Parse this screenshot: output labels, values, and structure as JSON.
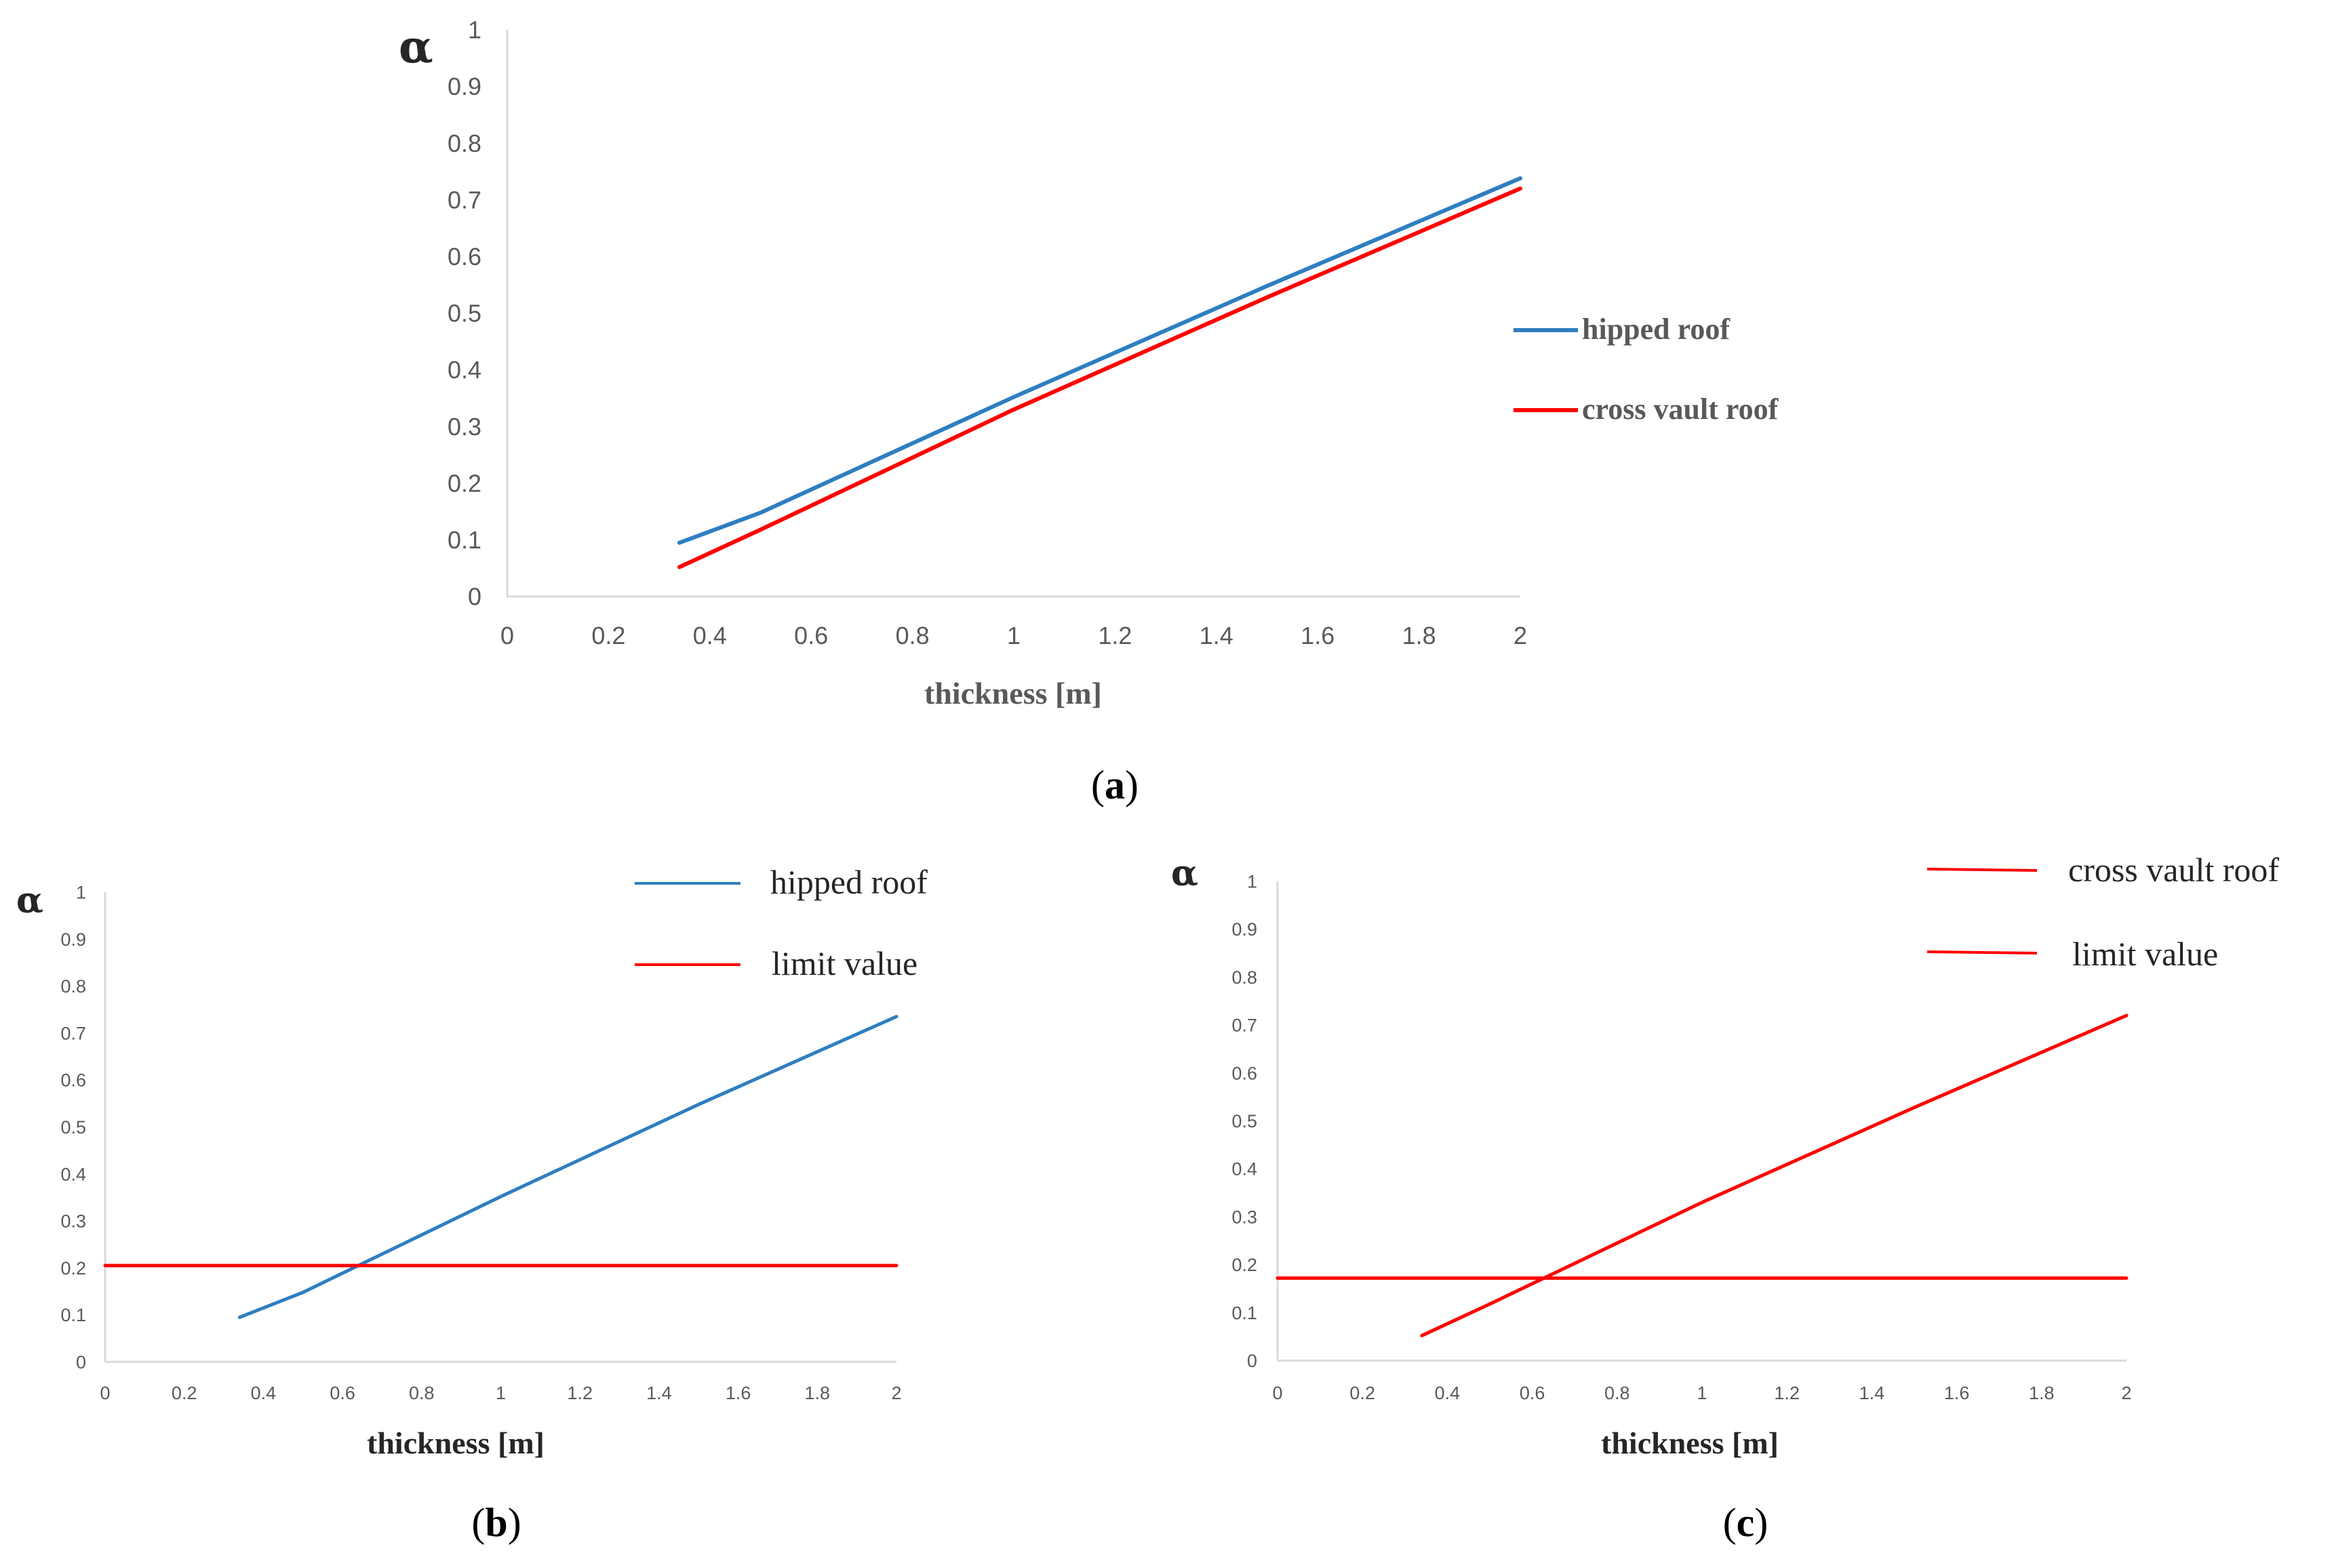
{
  "figure_captions": {
    "a": {
      "open": "(",
      "letter": "a",
      "close": ")"
    },
    "b": {
      "open": "(",
      "letter": "b",
      "close": ")"
    },
    "c": {
      "open": "(",
      "letter": "c",
      "close": ")"
    }
  },
  "colors": {
    "blue": "#2E7EC1",
    "red": "#FF0000",
    "axis": "#D9D9D9"
  },
  "chart_data": [
    {
      "id": "a",
      "type": "line",
      "ylabel": "α",
      "xlabel": "thickness [m]",
      "xlim": [
        0,
        2
      ],
      "ylim": [
        0,
        1
      ],
      "xticks": [
        "0",
        "0.2",
        "0.4",
        "0.6",
        "0.8",
        "1",
        "1.2",
        "1.4",
        "1.6",
        "1.8",
        "2"
      ],
      "yticks": [
        "0",
        "0.1",
        "0.2",
        "0.3",
        "0.4",
        "0.5",
        "0.6",
        "0.7",
        "0.8",
        "0.9",
        "1"
      ],
      "series": [
        {
          "name": "hipped roof",
          "color": "#2E7EC1",
          "x": [
            0.34,
            0.5,
            1.0,
            1.5,
            2.0
          ],
          "y": [
            0.095,
            0.148,
            0.352,
            0.548,
            0.738
          ]
        },
        {
          "name": "cross vault roof",
          "color": "#FF0000",
          "x": [
            0.34,
            0.5,
            1.0,
            1.5,
            2.0
          ],
          "y": [
            0.052,
            0.118,
            0.33,
            0.528,
            0.72
          ]
        }
      ]
    },
    {
      "id": "b",
      "type": "line",
      "ylabel": "α",
      "xlabel": "thickness [m]",
      "xlim": [
        0,
        2
      ],
      "ylim": [
        0,
        1
      ],
      "xticks": [
        "0",
        "0.2",
        "0.4",
        "0.6",
        "0.8",
        "1",
        "1.2",
        "1.4",
        "1.6",
        "1.8",
        "2"
      ],
      "yticks": [
        "0",
        "0.1",
        "0.2",
        "0.3",
        "0.4",
        "0.5",
        "0.6",
        "0.7",
        "0.8",
        "0.9",
        "1"
      ],
      "series": [
        {
          "name": "hipped roof",
          "color": "#2E7EC1",
          "x": [
            0.34,
            0.5,
            1.0,
            1.5,
            2.0
          ],
          "y": [
            0.095,
            0.148,
            0.352,
            0.548,
            0.735
          ]
        },
        {
          "name": "limit value",
          "color": "#FF0000",
          "x": [
            0,
            2
          ],
          "y": [
            0.205,
            0.205
          ]
        }
      ]
    },
    {
      "id": "c",
      "type": "line",
      "ylabel": "α",
      "xlabel": "thickness [m]",
      "xlim": [
        0,
        2
      ],
      "ylim": [
        0,
        1
      ],
      "xticks": [
        "0",
        "0.2",
        "0.4",
        "0.6",
        "0.8",
        "1",
        "1.2",
        "1.4",
        "1.6",
        "1.8",
        "2"
      ],
      "yticks": [
        "0",
        "0.1",
        "0.2",
        "0.3",
        "0.4",
        "0.5",
        "0.6",
        "0.7",
        "0.8",
        "0.9",
        "1"
      ],
      "series": [
        {
          "name": "cross vault roof",
          "color": "#FF0000",
          "x": [
            0.34,
            0.5,
            1.0,
            1.5,
            2.0
          ],
          "y": [
            0.052,
            0.118,
            0.33,
            0.528,
            0.72
          ]
        },
        {
          "name": "limit value",
          "color": "#FF0000",
          "x": [
            0,
            2
          ],
          "y": [
            0.172,
            0.172
          ]
        }
      ]
    }
  ]
}
